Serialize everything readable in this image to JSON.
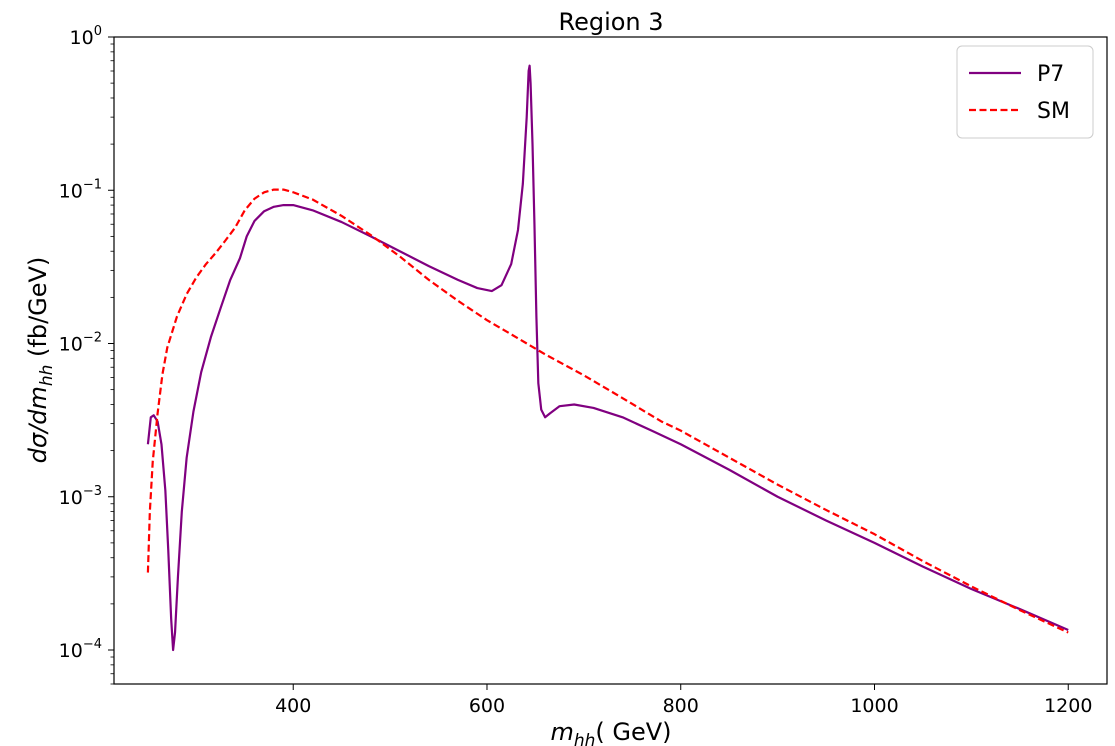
{
  "chart_data": {
    "type": "line",
    "title": "Region 3",
    "xlabel_main": "m",
    "xlabel_sub": "hh",
    "xlabel_rest": "( GeV)",
    "ylabel_main": "dσ/dm",
    "ylabel_sub": "hh",
    "ylabel_rest": " (fb/GeV)",
    "xlim": [
      215,
      1240
    ],
    "ylim": [
      6e-05,
      1.0
    ],
    "yscale": "log",
    "grid": false,
    "legend_position": "top-right",
    "x_ticks": [
      400,
      600,
      800,
      1000,
      1200
    ],
    "y_ticks": [
      {
        "value": 0.0001,
        "base": "10",
        "exp": "−4"
      },
      {
        "value": 0.001,
        "base": "10",
        "exp": "−3"
      },
      {
        "value": 0.01,
        "base": "10",
        "exp": "−2"
      },
      {
        "value": 0.1,
        "base": "10",
        "exp": "−1"
      },
      {
        "value": 1,
        "base": "10",
        "exp": "0"
      }
    ],
    "series": [
      {
        "name": "P7",
        "color": "#800080",
        "style": "solid",
        "points": [
          [
            250,
            0.0022
          ],
          [
            253,
            0.0033
          ],
          [
            256,
            0.0034
          ],
          [
            260,
            0.0031
          ],
          [
            264,
            0.0022
          ],
          [
            268,
            0.0011
          ],
          [
            271,
            0.00045
          ],
          [
            274,
            0.00016
          ],
          [
            276,
            0.0001
          ],
          [
            278,
            0.00013
          ],
          [
            281,
            0.0003
          ],
          [
            285,
            0.0008
          ],
          [
            290,
            0.0018
          ],
          [
            297,
            0.0036
          ],
          [
            305,
            0.0065
          ],
          [
            315,
            0.011
          ],
          [
            325,
            0.017
          ],
          [
            335,
            0.026
          ],
          [
            345,
            0.036
          ],
          [
            352,
            0.05
          ],
          [
            360,
            0.063
          ],
          [
            370,
            0.073
          ],
          [
            380,
            0.078
          ],
          [
            390,
            0.08
          ],
          [
            400,
            0.08
          ],
          [
            420,
            0.074
          ],
          [
            450,
            0.062
          ],
          [
            480,
            0.05
          ],
          [
            510,
            0.04
          ],
          [
            540,
            0.032
          ],
          [
            570,
            0.026
          ],
          [
            590,
            0.023
          ],
          [
            605,
            0.022
          ],
          [
            615,
            0.024
          ],
          [
            625,
            0.033
          ],
          [
            632,
            0.055
          ],
          [
            637,
            0.11
          ],
          [
            641,
            0.3
          ],
          [
            643,
            0.6
          ],
          [
            644,
            0.65
          ],
          [
            645,
            0.5
          ],
          [
            647,
            0.2
          ],
          [
            649,
            0.06
          ],
          [
            651,
            0.015
          ],
          [
            653,
            0.0055
          ],
          [
            656,
            0.0037
          ],
          [
            660,
            0.0033
          ],
          [
            665,
            0.0035
          ],
          [
            675,
            0.0039
          ],
          [
            690,
            0.004
          ],
          [
            710,
            0.0038
          ],
          [
            740,
            0.0033
          ],
          [
            770,
            0.0027
          ],
          [
            800,
            0.0022
          ],
          [
            850,
            0.0015
          ],
          [
            900,
            0.001
          ],
          [
            950,
            0.0007
          ],
          [
            1000,
            0.0005
          ],
          [
            1050,
            0.00035
          ],
          [
            1100,
            0.00025
          ],
          [
            1150,
            0.000185
          ],
          [
            1200,
            0.000135
          ]
        ]
      },
      {
        "name": "SM",
        "color": "#ff0000",
        "style": "dashed",
        "points": [
          [
            250,
            0.00032
          ],
          [
            252,
            0.0008
          ],
          [
            255,
            0.0017
          ],
          [
            260,
            0.0035
          ],
          [
            265,
            0.0063
          ],
          [
            270,
            0.0094
          ],
          [
            280,
            0.015
          ],
          [
            290,
            0.021
          ],
          [
            300,
            0.027
          ],
          [
            310,
            0.033
          ],
          [
            320,
            0.039
          ],
          [
            330,
            0.047
          ],
          [
            340,
            0.057
          ],
          [
            350,
            0.074
          ],
          [
            360,
            0.088
          ],
          [
            370,
            0.097
          ],
          [
            380,
            0.101
          ],
          [
            390,
            0.101
          ],
          [
            400,
            0.097
          ],
          [
            420,
            0.087
          ],
          [
            450,
            0.068
          ],
          [
            480,
            0.051
          ],
          [
            510,
            0.037
          ],
          [
            540,
            0.026
          ],
          [
            570,
            0.019
          ],
          [
            600,
            0.0142
          ],
          [
            630,
            0.011
          ],
          [
            660,
            0.0085
          ],
          [
            700,
            0.0062
          ],
          [
            740,
            0.0044
          ],
          [
            780,
            0.0031
          ],
          [
            800,
            0.0027
          ],
          [
            850,
            0.0018
          ],
          [
            900,
            0.0012
          ],
          [
            950,
            0.00082
          ],
          [
            1000,
            0.00057
          ],
          [
            1050,
            0.00038
          ],
          [
            1100,
            0.00026
          ],
          [
            1150,
            0.000182
          ],
          [
            1200,
            0.00013
          ]
        ]
      }
    ]
  }
}
